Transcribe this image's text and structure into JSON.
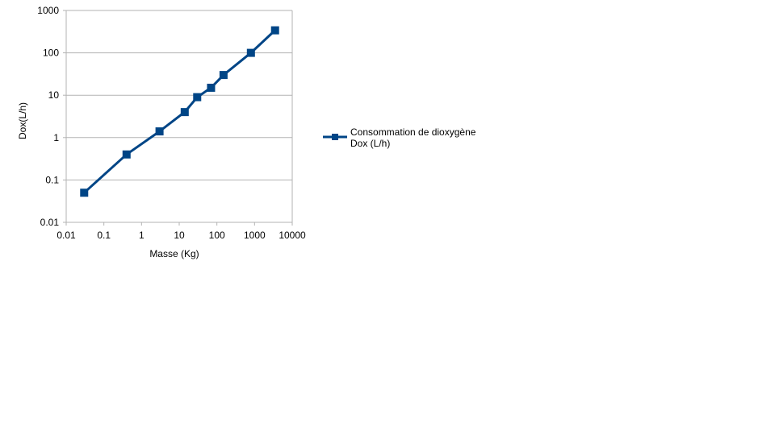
{
  "chart_data": {
    "type": "line",
    "x_scale": "log",
    "y_scale": "log",
    "xlabel": "Masse (Kg)",
    "ylabel": "Dox(L/h)",
    "xlim": [
      0.01,
      10000
    ],
    "ylim": [
      0.01,
      1000
    ],
    "x_ticks": [
      "0.01",
      "0.1",
      "1",
      "10",
      "100",
      "1000",
      "10000"
    ],
    "y_ticks": [
      "0.01",
      "0.1",
      "1",
      "10",
      "100",
      "1000"
    ],
    "grid": "horizontal",
    "legend_position": "right",
    "series": [
      {
        "name_lines": [
          "Consommation de dioxygène",
          "Dox (L/h)"
        ],
        "color": "#004586",
        "marker": "square",
        "x": [
          0.03,
          0.4,
          3,
          14,
          30,
          70,
          150,
          800,
          3500
        ],
        "y": [
          0.05,
          0.4,
          1.4,
          4,
          9,
          15,
          30,
          100,
          340
        ]
      }
    ]
  }
}
